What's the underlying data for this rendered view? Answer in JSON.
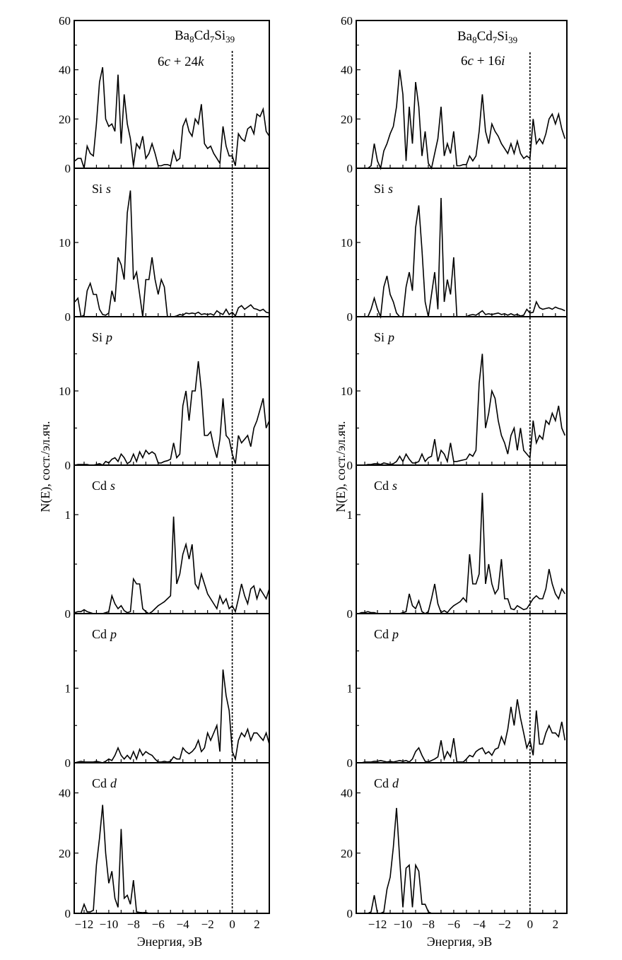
{
  "chart_data": [
    {
      "type": "line",
      "column": "left",
      "title": "Ba8Cd7Si39",
      "annotation": "6c + 24k",
      "xlabel": "Энергия, эВ",
      "ylabel": "N(E), сост./эл.яч.",
      "xlim": [
        -12.8,
        3.0
      ],
      "xticks": [
        -12,
        -10,
        -8,
        -6,
        -4,
        -2,
        0,
        2
      ],
      "xtick_labels": [
        "−12",
        "−10",
        "−8",
        "−6",
        "−4",
        "−2",
        "0",
        "2"
      ],
      "fermi_level": 0,
      "x_start": -12.75,
      "x_step": 0.25,
      "panels": [
        {
          "element": "",
          "orbital": "",
          "name": "total",
          "ylim": [
            0,
            60
          ],
          "yticks": [
            0,
            20,
            40,
            60
          ],
          "ytick_labels": [
            "0",
            "20",
            "40",
            "60"
          ],
          "yminor": [
            10,
            30,
            50
          ],
          "values": [
            3,
            4,
            4,
            0,
            9,
            6,
            5,
            18,
            35,
            41,
            20,
            17,
            18,
            15,
            38,
            10,
            30,
            18,
            12,
            1,
            10,
            8,
            13,
            4,
            6,
            10,
            6,
            1,
            1,
            1.5,
            1.5,
            1,
            7,
            3,
            4,
            17,
            20,
            15,
            13,
            20,
            18,
            26,
            10,
            8,
            9,
            6,
            4,
            2,
            17,
            9,
            5,
            5,
            1,
            14,
            12,
            11,
            16,
            17,
            14,
            22,
            21,
            24,
            15,
            13
          ]
        },
        {
          "element": "Si",
          "orbital": "s",
          "name": "si-s",
          "ylim": [
            0,
            20
          ],
          "yticks": [
            0,
            10
          ],
          "ytick_labels": [
            "0",
            "10"
          ],
          "yminor": [
            5,
            15
          ],
          "values": [
            2,
            2.5,
            0,
            0.2,
            3.5,
            4.5,
            3,
            3,
            1,
            0.3,
            0.2,
            0.5,
            3.5,
            2,
            8,
            7,
            5,
            14,
            17,
            5,
            6,
            3,
            0,
            5,
            5,
            8,
            5,
            3,
            5,
            4,
            0,
            0,
            0,
            0.1,
            0.3,
            0.2,
            0.5,
            0.4,
            0.5,
            0.4,
            0.6,
            0.3,
            0.4,
            0.3,
            0.4,
            0.2,
            0.8,
            0.5,
            0.3,
            1,
            0.3,
            0.6,
            0.1,
            1.2,
            1.5,
            1,
            1.3,
            1.6,
            1.1,
            1,
            0.8,
            1,
            0.6,
            0.5
          ]
        },
        {
          "element": "Si",
          "orbital": "p",
          "name": "si-p",
          "ylim": [
            0,
            20
          ],
          "yticks": [
            0,
            10
          ],
          "ytick_labels": [
            "0",
            "10"
          ],
          "yminor": [
            5,
            15
          ],
          "values": [
            0,
            0.1,
            0.1,
            0.1,
            0.1,
            0,
            0,
            0.1,
            0.2,
            0,
            0.5,
            0.3,
            0.8,
            1,
            0.5,
            1.5,
            1,
            0.2,
            0.5,
            1.5,
            0.5,
            1.8,
            1,
            2,
            1.5,
            1.8,
            1.5,
            0.3,
            0.3,
            0.5,
            0.6,
            0.8,
            3,
            1,
            1.5,
            8,
            10,
            6,
            10,
            10,
            14,
            10,
            4,
            4,
            4.5,
            2.5,
            1,
            3.5,
            9,
            4,
            3.5,
            1.5,
            0.2,
            4,
            3,
            3.5,
            4,
            2.5,
            5,
            6,
            7.5,
            9,
            5,
            6
          ]
        },
        {
          "element": "Cd",
          "orbital": "s",
          "name": "cd-s",
          "ylim": [
            0,
            1.5
          ],
          "yticks": [
            0,
            1
          ],
          "ytick_labels": [
            "0",
            "1"
          ],
          "yminor": [
            0.5
          ],
          "values": [
            0.01,
            0.02,
            0.02,
            0.04,
            0.02,
            0.01,
            0,
            0,
            0,
            0,
            0.01,
            0.02,
            0.18,
            0.1,
            0.05,
            0.08,
            0.03,
            0.01,
            0.02,
            0.35,
            0.3,
            0.3,
            0.05,
            0.02,
            0,
            0.02,
            0.05,
            0.08,
            0.1,
            0.12,
            0.15,
            0.18,
            0.98,
            0.3,
            0.4,
            0.6,
            0.7,
            0.55,
            0.7,
            0.3,
            0.25,
            0.4,
            0.3,
            0.2,
            0.15,
            0.1,
            0.05,
            0.18,
            0.1,
            0.15,
            0.05,
            0.08,
            0.02,
            0.15,
            0.3,
            0.18,
            0.1,
            0.25,
            0.28,
            0.15,
            0.25,
            0.2,
            0.15,
            0.25
          ]
        },
        {
          "element": "Cd",
          "orbital": "p",
          "name": "cd-p",
          "ylim": [
            0,
            2
          ],
          "yticks": [
            0,
            1
          ],
          "ytick_labels": [
            "0",
            "1"
          ],
          "yminor": [
            0.5,
            1.5
          ],
          "values": [
            0,
            0.01,
            0.02,
            0.01,
            0.01,
            0.01,
            0.01,
            0.02,
            0.01,
            0,
            0.02,
            0.05,
            0.03,
            0.1,
            0.2,
            0.1,
            0.05,
            0.1,
            0.05,
            0.15,
            0.05,
            0.18,
            0.1,
            0.15,
            0.12,
            0.1,
            0.05,
            0.01,
            0.01,
            0.02,
            0.01,
            0.02,
            0.08,
            0.05,
            0.05,
            0.2,
            0.15,
            0.12,
            0.15,
            0.2,
            0.3,
            0.15,
            0.2,
            0.4,
            0.3,
            0.4,
            0.5,
            0.15,
            1.25,
            0.9,
            0.7,
            0.15,
            0.05,
            0.3,
            0.4,
            0.35,
            0.45,
            0.3,
            0.4,
            0.4,
            0.35,
            0.3,
            0.4,
            0.25
          ]
        },
        {
          "element": "Cd",
          "orbital": "d",
          "name": "cd-d",
          "ylim": [
            0,
            50
          ],
          "yticks": [
            0,
            20,
            40
          ],
          "ytick_labels": [
            "0",
            "20",
            "40"
          ],
          "yminor": [
            10,
            30
          ],
          "values": [
            0,
            0,
            0,
            3,
            0.5,
            0.5,
            1,
            16,
            25,
            36,
            20,
            10,
            14,
            5,
            2,
            28,
            5,
            6,
            3,
            11,
            0.5,
            0.3,
            0.2,
            0.3,
            0,
            0,
            0,
            0,
            0,
            0,
            0,
            0,
            0,
            0,
            0,
            0,
            0,
            0,
            0,
            0,
            0,
            0,
            0,
            0,
            0,
            0,
            0,
            0,
            0,
            0,
            0,
            0,
            0,
            0,
            0,
            0,
            0,
            0,
            0,
            0,
            0,
            0,
            0,
            0
          ]
        }
      ]
    },
    {
      "type": "line",
      "column": "right",
      "title": "Ba8Cd7Si39",
      "annotation": "6c + 16i",
      "xlabel": "Энергия, эВ",
      "ylabel": "N(E), сост./эл.яч.",
      "xlim": [
        -13.67,
        2.9
      ],
      "xticks": [
        -12,
        -10,
        -8,
        -6,
        -4,
        -2,
        0,
        2
      ],
      "xtick_labels": [
        "−12",
        "−10",
        "−8",
        "−6",
        "−4",
        "−2",
        "0",
        "2"
      ],
      "fermi_level": 0,
      "x_start": -13.5,
      "x_step": 0.25,
      "panels": [
        {
          "element": "",
          "orbital": "",
          "name": "total",
          "ylim": [
            0,
            60
          ],
          "yticks": [
            0,
            20,
            40,
            60
          ],
          "ytick_labels": [
            "0",
            "20",
            "40",
            "60"
          ],
          "yminor": [
            10,
            30,
            50
          ],
          "values": [
            0,
            0,
            0,
            0,
            1,
            10,
            3,
            0,
            7,
            10,
            14,
            17,
            25,
            40,
            30,
            3,
            25,
            10,
            35,
            25,
            5,
            15,
            2,
            0,
            6,
            12,
            25,
            5,
            10,
            6,
            15,
            1,
            1,
            1.5,
            1.5,
            5,
            3,
            5,
            15,
            30,
            15,
            10,
            18,
            15,
            13,
            10,
            8,
            6,
            10,
            6,
            11,
            6,
            4,
            5,
            4,
            20,
            10,
            12,
            10,
            14,
            20,
            22,
            18,
            22,
            16,
            12
          ]
        },
        {
          "element": "Si",
          "orbital": "s",
          "name": "si-s",
          "ylim": [
            0,
            20
          ],
          "yticks": [
            0,
            10
          ],
          "ytick_labels": [
            "0",
            "10"
          ],
          "yminor": [
            5,
            15
          ],
          "values": [
            0,
            0,
            0,
            0,
            1,
            2.5,
            1,
            0,
            4,
            5.5,
            3,
            2,
            0.5,
            0,
            0,
            4,
            6,
            3.5,
            12,
            15,
            9,
            2,
            0,
            3,
            6,
            1,
            16,
            2,
            5,
            3,
            8,
            0,
            0,
            0,
            0,
            0.2,
            0.3,
            0.2,
            0.5,
            0.8,
            0.3,
            0.4,
            0.3,
            0.4,
            0.5,
            0.3,
            0.4,
            0.2,
            0.4,
            0.2,
            0.3,
            0.1,
            0.2,
            1,
            0.5,
            0.6,
            2,
            1.2,
            1,
            1.1,
            1.2,
            1,
            1.3,
            1.1,
            1,
            0.8
          ]
        },
        {
          "element": "Si",
          "orbital": "p",
          "name": "si-p",
          "ylim": [
            0,
            20
          ],
          "yticks": [
            0,
            10
          ],
          "ytick_labels": [
            "0",
            "10"
          ],
          "yminor": [
            5,
            15
          ],
          "values": [
            0,
            0,
            0,
            0.1,
            0.1,
            0.2,
            0.2,
            0.1,
            0.3,
            0.2,
            0.1,
            0.2,
            0.5,
            1.2,
            0.5,
            1.5,
            0.8,
            0.3,
            0.3,
            0.5,
            1.5,
            0.5,
            1,
            1.2,
            3.5,
            0.5,
            2,
            1.5,
            0.5,
            3,
            0.5,
            0.5,
            0.6,
            0.7,
            0.8,
            1.5,
            1.2,
            2,
            11,
            15,
            5,
            7,
            10,
            9,
            6,
            4,
            3,
            1.5,
            4,
            5,
            2,
            5,
            2,
            1.5,
            1,
            6,
            3,
            4,
            3.5,
            6,
            5.5,
            7,
            6,
            8,
            5,
            4
          ]
        },
        {
          "element": "Cd",
          "orbital": "s",
          "name": "cd-s",
          "ylim": [
            0,
            1.5
          ],
          "yticks": [
            0,
            1
          ],
          "ytick_labels": [
            "0",
            "1"
          ],
          "yminor": [
            0.5
          ],
          "values": [
            0,
            0.01,
            0.01,
            0.02,
            0.01,
            0.01,
            0,
            0,
            0,
            0,
            0,
            0,
            0,
            0,
            0.01,
            0.02,
            0.2,
            0.08,
            0.05,
            0.13,
            0.02,
            0,
            0.02,
            0.15,
            0.3,
            0.1,
            0.01,
            0.03,
            0.01,
            0.05,
            0.08,
            0.1,
            0.12,
            0.16,
            0.12,
            0.6,
            0.3,
            0.3,
            0.4,
            1.22,
            0.3,
            0.5,
            0.3,
            0.2,
            0.25,
            0.55,
            0.15,
            0.15,
            0.05,
            0.04,
            0.08,
            0.06,
            0.04,
            0.05,
            0.1,
            0.15,
            0.18,
            0.15,
            0.15,
            0.25,
            0.45,
            0.3,
            0.2,
            0.15,
            0.25,
            0.2
          ]
        },
        {
          "element": "Cd",
          "orbital": "p",
          "name": "cd-p",
          "ylim": [
            0,
            2
          ],
          "yticks": [
            0,
            1
          ],
          "ytick_labels": [
            "0",
            "1"
          ],
          "yminor": [
            0.5,
            1.5
          ],
          "values": [
            0,
            0,
            0.01,
            0.01,
            0.01,
            0.02,
            0.02,
            0.03,
            0.02,
            0.01,
            0.02,
            0.01,
            0.02,
            0.03,
            0.02,
            0.03,
            0.01,
            0.05,
            0.15,
            0.2,
            0.1,
            0.02,
            0.01,
            0.03,
            0.05,
            0.08,
            0.3,
            0.05,
            0.15,
            0.08,
            0.33,
            0.01,
            0.01,
            0.01,
            0.05,
            0.1,
            0.08,
            0.15,
            0.18,
            0.2,
            0.12,
            0.15,
            0.1,
            0.18,
            0.2,
            0.35,
            0.25,
            0.45,
            0.75,
            0.5,
            0.85,
            0.6,
            0.4,
            0.2,
            0.3,
            0.1,
            0.7,
            0.25,
            0.25,
            0.4,
            0.5,
            0.4,
            0.4,
            0.35,
            0.55,
            0.3
          ]
        },
        {
          "element": "Cd",
          "orbital": "d",
          "name": "cd-d",
          "ylim": [
            0,
            50
          ],
          "yticks": [
            0,
            20,
            40
          ],
          "ytick_labels": [
            "0",
            "20",
            "40"
          ],
          "yminor": [
            10,
            30
          ],
          "values": [
            0,
            0,
            0,
            0,
            0.5,
            6,
            0,
            0,
            0.5,
            8,
            12,
            22,
            35,
            18,
            2,
            15,
            16,
            2,
            16,
            14,
            3,
            3,
            0.5,
            0,
            0,
            0,
            0,
            0,
            0,
            0,
            0,
            0,
            0,
            0,
            0,
            0,
            0,
            0,
            0,
            0,
            0,
            0,
            0,
            0,
            0,
            0,
            0,
            0,
            0,
            0,
            0,
            0,
            0,
            0,
            0,
            0,
            0,
            0,
            0,
            0,
            0,
            0,
            0,
            0,
            0,
            0
          ]
        }
      ]
    }
  ]
}
